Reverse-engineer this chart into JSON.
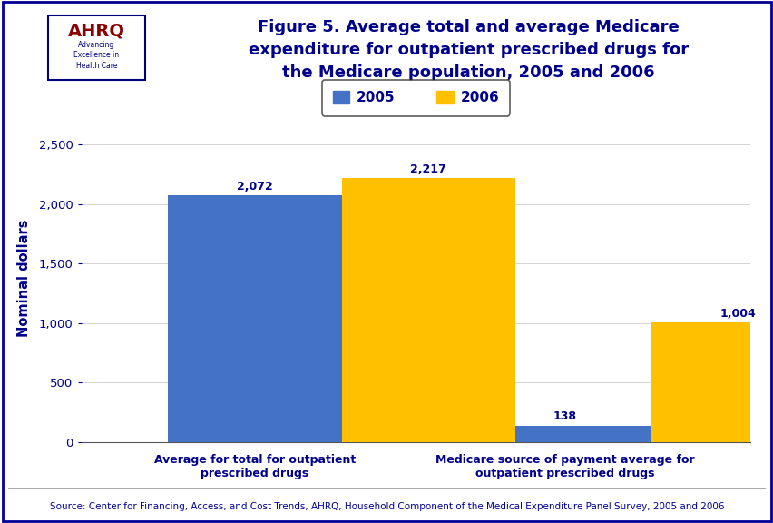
{
  "title_lines": [
    "Figure 5. Average total and average Medicare",
    "expenditure for outpatient prescribed drugs for",
    "the Medicare population, 2005 and 2006"
  ],
  "categories": [
    "Average for total for outpatient\nprescribed drugs",
    "Medicare source of payment average for\noutpatient prescribed drugs"
  ],
  "values_2005": [
    2072,
    138
  ],
  "values_2006": [
    2217,
    1004
  ],
  "labels_2005": [
    "2,072",
    "138"
  ],
  "labels_2006": [
    "2,217",
    "1,004"
  ],
  "color_2005": "#4472C4",
  "color_2006": "#FFC000",
  "ylabel": "Nominal dollars",
  "ylim": [
    0,
    2750
  ],
  "yticks": [
    0,
    500,
    1000,
    1500,
    2000,
    2500
  ],
  "ytick_labels": [
    "0",
    "500",
    "1,000",
    "1,500",
    "2,000",
    "2,500"
  ],
  "legend_labels": [
    "2005",
    "2006"
  ],
  "source_text": "Source: Center for Financing, Access, and Cost Trends, AHRQ, Household Component of the Medical Expenditure Panel Survey, 2005 and 2006",
  "bg_color": "#FFFFFF",
  "title_color": "#00008B",
  "axis_label_color": "#00008B",
  "bar_label_color": "#00008B",
  "tick_label_color": "#00008B",
  "bar_width": 0.28,
  "divider_color": "#003399",
  "divider2_color": "#4477BB",
  "border_color": "#000099",
  "source_color": "#000099"
}
